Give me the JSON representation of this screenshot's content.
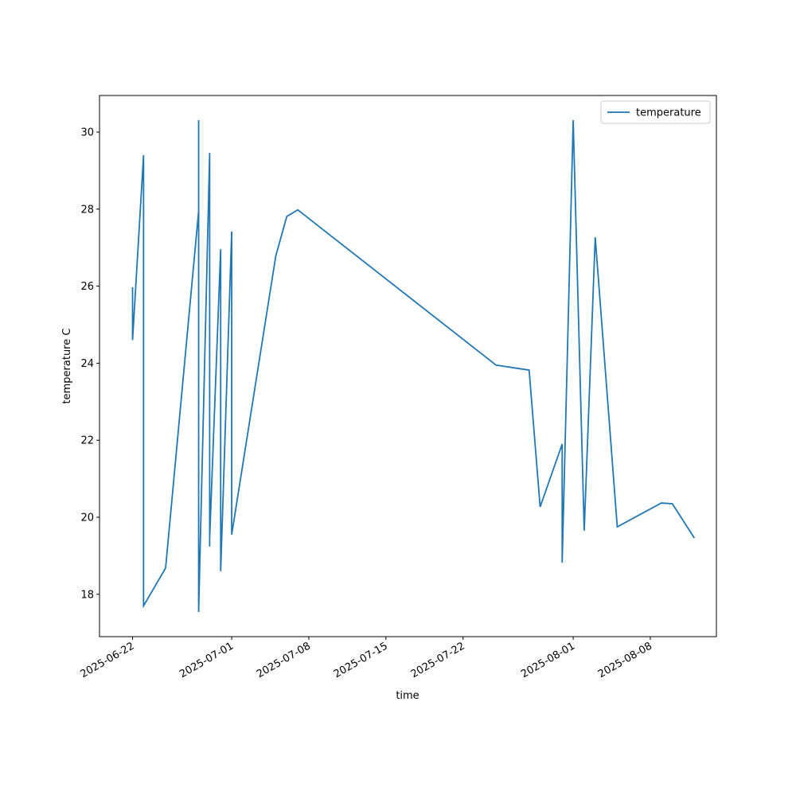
{
  "chart_data": {
    "type": "line",
    "xlabel": "time",
    "ylabel": "temperature C",
    "x": [
      "2025-06-22",
      "2025-06-22",
      "2025-06-23",
      "2025-06-23",
      "2025-06-25",
      "2025-06-28",
      "2025-06-28",
      "2025-06-28",
      "2025-06-28",
      "2025-06-29",
      "2025-06-29",
      "2025-06-29",
      "2025-06-30",
      "2025-06-30",
      "2025-06-30",
      "2025-07-01",
      "2025-07-01",
      "2025-07-01",
      "2025-07-05",
      "2025-07-06",
      "2025-07-07",
      "2025-07-25",
      "2025-07-28",
      "2025-07-29",
      "2025-07-31",
      "2025-07-31",
      "2025-08-01",
      "2025-08-02",
      "2025-08-03",
      "2025-08-05",
      "2025-08-09",
      "2025-08-10",
      "2025-08-12"
    ],
    "series": [
      {
        "name": "temperature",
        "color": "#1f77b4",
        "values": [
          25.97,
          24.6,
          29.4,
          17.7,
          18.68,
          27.95,
          30.31,
          30.31,
          17.54,
          29.46,
          19.24,
          19.46,
          26.96,
          19.11,
          18.6,
          27.42,
          20.1,
          19.55,
          26.78,
          27.81,
          27.98,
          23.95,
          23.82,
          20.27,
          21.9,
          18.82,
          30.31,
          19.65,
          27.27,
          19.75,
          20.37,
          20.35,
          19.46
        ]
      }
    ],
    "xlim": [
      "2025-06-19",
      "2025-08-14"
    ],
    "xticks": [
      "2025-06-22",
      "2025-07-01",
      "2025-07-08",
      "2025-07-15",
      "2025-07-22",
      "2025-08-01",
      "2025-08-08"
    ],
    "ylim": [
      16.9,
      30.95
    ],
    "yticks": [
      18,
      20,
      22,
      24,
      26,
      28,
      30
    ],
    "legend": "upper right"
  }
}
